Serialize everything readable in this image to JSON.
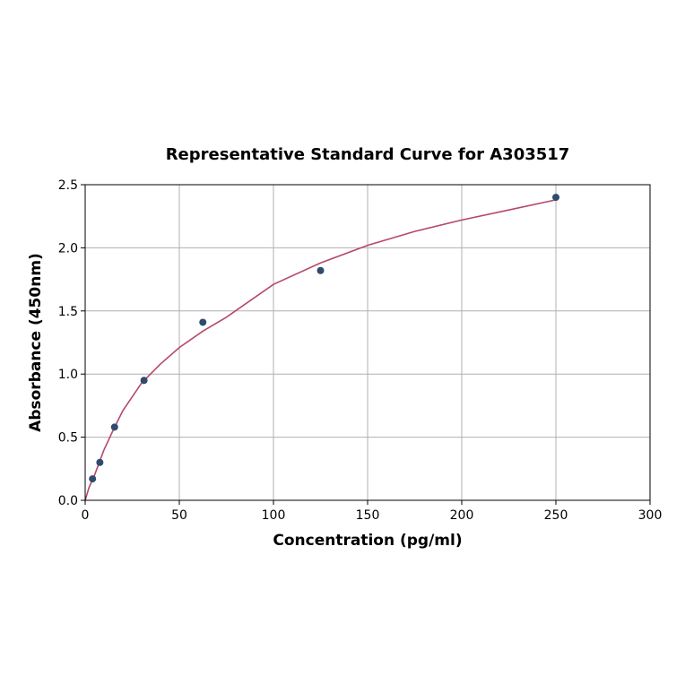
{
  "chart_data": {
    "type": "scatter",
    "title": "Representative Standard Curve for A303517",
    "xlabel": "Concentration (pg/ml)",
    "ylabel": "Absorbance (450nm)",
    "xlim": [
      0,
      300
    ],
    "ylim": [
      0,
      2.5
    ],
    "xticks": [
      0,
      50,
      100,
      150,
      200,
      250,
      300
    ],
    "yticks": [
      0.0,
      0.5,
      1.0,
      1.5,
      2.0,
      2.5
    ],
    "xtick_labels": [
      "0",
      "50",
      "100",
      "150",
      "200",
      "250",
      "300"
    ],
    "ytick_labels": [
      "0.0",
      "0.5",
      "1.0",
      "1.5",
      "2.0",
      "2.5"
    ],
    "grid": true,
    "series": [
      {
        "kind": "points",
        "color": "#2f4b6e",
        "x": [
          3.9,
          7.8,
          15.6,
          31.25,
          62.5,
          125,
          250
        ],
        "y": [
          0.17,
          0.3,
          0.58,
          0.95,
          1.41,
          1.82,
          2.4
        ]
      },
      {
        "kind": "fit-curve",
        "color": "#b5486a",
        "x": [
          0,
          2,
          5,
          10,
          15,
          20,
          30,
          40,
          50,
          62.5,
          75,
          100,
          125,
          150,
          175,
          200,
          225,
          250
        ],
        "y": [
          0.0,
          0.1,
          0.2,
          0.4,
          0.56,
          0.71,
          0.93,
          1.08,
          1.21,
          1.34,
          1.45,
          1.71,
          1.88,
          2.02,
          2.13,
          2.22,
          2.3,
          2.38
        ]
      }
    ]
  }
}
